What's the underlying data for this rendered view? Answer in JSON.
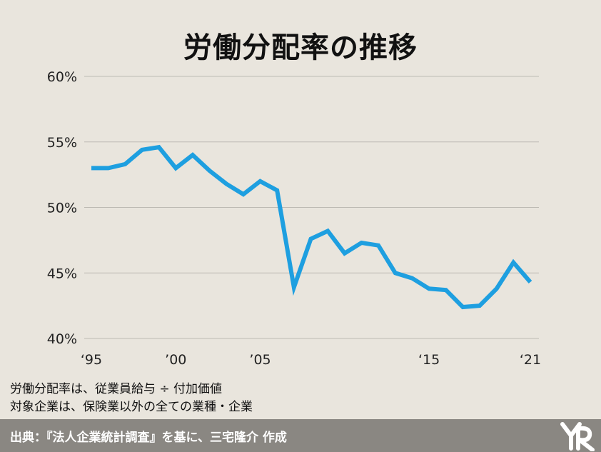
{
  "title": "労働分配率の推移",
  "notes": {
    "line1": "労働分配率は、従業員給与 ÷ 付加価値",
    "line2": "対象企業は、保険業以外の全ての業種・企業"
  },
  "footer": {
    "source": "出典：『法人企業統計調査』を基に、三宅隆介 作成"
  },
  "colors": {
    "line": "#1e9fe0",
    "background": "#e9e5dd",
    "grid": "#bdbab3",
    "footer": "#8a8782"
  },
  "chart_data": {
    "type": "line",
    "title": "労働分配率の推移",
    "xlabel": "",
    "ylabel": "",
    "ylim": [
      40,
      60
    ],
    "xlim": [
      1995,
      2021
    ],
    "grid": true,
    "y_ticks": [
      60,
      55,
      50,
      45,
      40
    ],
    "y_tick_labels": [
      "60%",
      "55%",
      "50%",
      "45%",
      "40%"
    ],
    "x_ticks": [
      1995,
      2000,
      2005,
      2015,
      2021
    ],
    "x_tick_labels": [
      "‘95",
      "’00",
      "’05",
      "‘15",
      "‘21"
    ],
    "series": [
      {
        "x": [
          1995,
          1996,
          1997,
          1998,
          1999,
          2000,
          2001,
          2002,
          2003,
          2004,
          2005,
          2006,
          2007,
          2008,
          2009,
          2010,
          2011,
          2012,
          2013,
          2014,
          2015,
          2016,
          2017,
          2018,
          2019,
          2020,
          2021
        ],
        "values": [
          53.0,
          53.0,
          53.3,
          54.4,
          54.6,
          53.0,
          54.0,
          52.8,
          51.8,
          51.0,
          52.0,
          51.3,
          43.9,
          47.6,
          48.2,
          46.5,
          47.3,
          47.1,
          45.0,
          44.6,
          43.8,
          43.7,
          42.4,
          42.5,
          43.8,
          45.8,
          44.3
        ]
      }
    ]
  }
}
